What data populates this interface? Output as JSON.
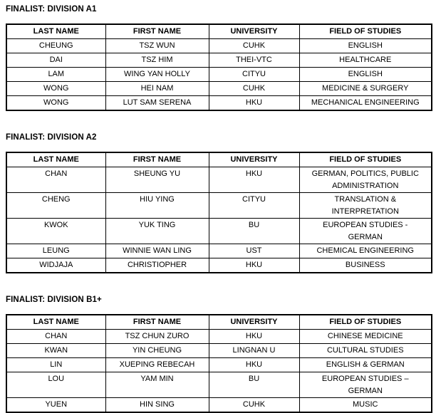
{
  "page": {
    "background": "#ffffff",
    "text_color": "#000000",
    "table_border_color": "#000000"
  },
  "sections": [
    {
      "title": "FINALIST: DIVISION A1",
      "table": {
        "headers": [
          "LAST NAME",
          "FIRST NAME",
          "UNIVERSITY",
          "FIELD OF STUDIES"
        ],
        "rows": [
          [
            "CHEUNG",
            "TSZ WUN",
            "CUHK",
            "ENGLISH"
          ],
          [
            "DAI",
            "TSZ HIM",
            "THEI-VTC",
            "HEALTHCARE"
          ],
          [
            "LAM",
            "WING YAN HOLLY",
            "CITYU",
            "ENGLISH"
          ],
          [
            "WONG",
            "HEI NAM",
            "CUHK",
            "MEDICINE & SURGERY"
          ],
          [
            "WONG",
            "LUT SAM SERENA",
            "HKU",
            "MECHANICAL ENGINEERING"
          ]
        ]
      }
    },
    {
      "title": "FINALIST: DIVISION A2",
      "table": {
        "headers": [
          "LAST NAME",
          "FIRST NAME",
          "UNIVERSITY",
          "FIELD OF STUDIES"
        ],
        "rows": [
          [
            "CHAN",
            "SHEUNG YU",
            "HKU",
            "GERMAN, POLITICS, PUBLIC\nADMINISTRATION"
          ],
          [
            "CHENG",
            "HIU YING",
            "CITYU",
            "TRANSLATION &\nINTERPRETATION"
          ],
          [
            "KWOK",
            "YUK TING",
            "BU",
            "EUROPEAN STUDIES -\nGERMAN"
          ],
          [
            "LEUNG",
            "WINNIE WAN LING",
            "UST",
            "CHEMICAL ENGINEERING"
          ],
          [
            "WIDJAJA",
            "CHRISTIOPHER",
            "HKU",
            "BUSINESS"
          ]
        ]
      }
    },
    {
      "title": "FINALIST: DIVISION B1+",
      "table": {
        "headers": [
          "LAST NAME",
          "FIRST NAME",
          "UNIVERSITY",
          "FIELD OF STUDIES"
        ],
        "rows": [
          [
            "CHAN",
            "TSZ CHUN ZURO",
            "HKU",
            "CHINESE MEDICINE"
          ],
          [
            "KWAN",
            "YIN CHEUNG",
            "LINGNAN U",
            "CULTURAL STUDIES"
          ],
          [
            "LIN",
            "XUEPING REBECAH",
            "HKU",
            "ENGLISH & GERMAN"
          ],
          [
            "LOU",
            "YAM MIN",
            "BU",
            "EUROPEAN STUDIES –\nGERMAN"
          ],
          [
            "YUEN",
            "HIN SING",
            "CUHK",
            "MUSIC"
          ]
        ]
      }
    }
  ]
}
